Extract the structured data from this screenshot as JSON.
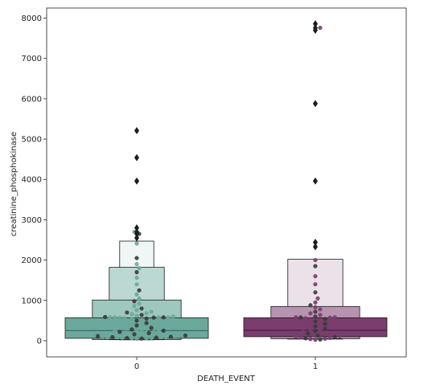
{
  "chart_data": {
    "type": "boxen+swarm",
    "xlabel": "DEATH_EVENT",
    "ylabel": "creatinine_phosphokinase",
    "categories": [
      "0",
      "1"
    ],
    "ylim": [
      -400,
      8250
    ],
    "yticks": [
      "0",
      "1000",
      "2000",
      "3000",
      "4000",
      "5000",
      "6000",
      "7000",
      "8000"
    ],
    "colors": {
      "group0": "#6aa99b",
      "group1": "#7a3d6e",
      "box_edge": "#1a1a1a",
      "swarm_dark": "#3a3a3a",
      "axis": "#222222"
    },
    "groups": [
      {
        "category": "0",
        "letter_values": [
          [
            60,
            570
          ],
          [
            30,
            1010
          ],
          [
            25,
            1820
          ],
          [
            23,
            2470
          ]
        ],
        "median": 250,
        "outliers": [
          2550,
          2650,
          2700,
          2800,
          3960,
          4540,
          5210
        ],
        "swarm": [
          5210,
          4540,
          3960,
          2800,
          2700,
          2650,
          2550,
          2410,
          2050,
          1900,
          1800,
          1700,
          1560,
          1400,
          1250,
          1150,
          1050,
          980,
          920,
          860,
          800,
          760,
          720,
          700,
          680,
          660,
          640,
          620,
          600,
          590,
          582,
          582,
          580,
          580,
          580,
          575,
          570,
          560,
          550,
          540,
          520,
          500,
          480,
          460,
          440,
          420,
          400,
          380,
          360,
          340,
          320,
          300,
          290,
          280,
          270,
          260,
          250,
          240,
          230,
          220,
          210,
          200,
          190,
          180,
          170,
          160,
          150,
          140,
          130,
          125,
          120,
          115,
          110,
          105,
          100,
          100,
          95,
          90,
          88,
          85,
          80,
          75,
          70,
          66,
          62,
          60,
          55,
          50
        ]
      },
      {
        "category": "1",
        "letter_values": [
          [
            100,
            570
          ],
          [
            50,
            850
          ],
          [
            40,
            2020
          ]
        ],
        "median": 260,
        "outliers": [
          2330,
          2440,
          3960,
          5880,
          7700,
          7760,
          7860
        ],
        "swarm": [
          7860,
          7760,
          7700,
          5880,
          3960,
          2440,
          2330,
          2000,
          1850,
          1600,
          1400,
          1200,
          1050,
          950,
          880,
          830,
          780,
          720,
          680,
          640,
          600,
          582,
          582,
          580,
          575,
          560,
          540,
          520,
          500,
          480,
          460,
          440,
          420,
          400,
          380,
          360,
          340,
          320,
          300,
          280,
          260,
          240,
          220,
          200,
          180,
          160,
          140,
          125,
          110,
          100,
          90,
          80,
          70,
          60,
          50,
          40,
          30,
          23
        ]
      }
    ]
  }
}
